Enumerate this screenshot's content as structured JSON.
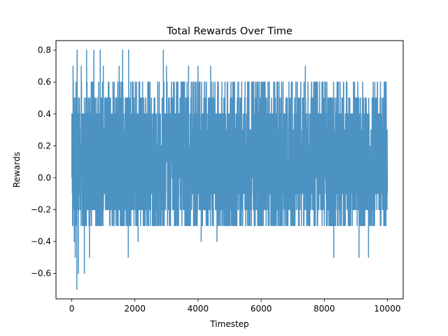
{
  "chart_data": {
    "type": "line",
    "title": "Total Rewards Over Time",
    "xlabel": "Timestep",
    "ylabel": "Rewards",
    "xlim": [
      -500,
      10500
    ],
    "ylim": [
      -0.76,
      0.86
    ],
    "xticks": [
      0,
      2000,
      4000,
      6000,
      8000,
      10000
    ],
    "xtick_labels": [
      "0",
      "2000",
      "4000",
      "6000",
      "8000",
      "10000"
    ],
    "yticks": [
      -0.6,
      -0.4,
      -0.2,
      0.0,
      0.2,
      0.4,
      0.6,
      0.8
    ],
    "ytick_labels": [
      "−0.6",
      "−0.4",
      "−0.2",
      "0.0",
      "0.2",
      "0.4",
      "0.6",
      "0.8"
    ],
    "grid": false,
    "legend": "none",
    "series": [
      {
        "color": "#1f77b4",
        "alpha": 0.8,
        "x_start": 0,
        "x_end": 10000,
        "levels": [
          -0.7,
          -0.6,
          -0.5,
          -0.4,
          -0.3,
          -0.2,
          -0.1,
          0.0,
          0.1,
          0.2,
          0.3,
          0.4,
          0.5,
          0.6,
          0.7,
          0.8
        ],
        "dense_band": [
          -0.2,
          0.4
        ],
        "extremes": [
          {
            "x": 40,
            "y": 0.7
          },
          {
            "x": 80,
            "y": -0.4
          },
          {
            "x": 110,
            "y": -0.5
          },
          {
            "x": 160,
            "y": -0.7
          },
          {
            "x": 170,
            "y": 0.8
          },
          {
            "x": 210,
            "y": -0.6
          },
          {
            "x": 300,
            "y": 0.7
          },
          {
            "x": 400,
            "y": -0.6
          },
          {
            "x": 470,
            "y": 0.8
          },
          {
            "x": 560,
            "y": -0.5
          },
          {
            "x": 700,
            "y": 0.8
          },
          {
            "x": 900,
            "y": 0.8
          },
          {
            "x": 1000,
            "y": 0.7
          },
          {
            "x": 1500,
            "y": 0.7
          },
          {
            "x": 1610,
            "y": 0.8
          },
          {
            "x": 1800,
            "y": 0.8
          },
          {
            "x": 1790,
            "y": -0.5
          },
          {
            "x": 2100,
            "y": -0.4
          },
          {
            "x": 2900,
            "y": 0.8
          },
          {
            "x": 3000,
            "y": 0.7
          },
          {
            "x": 3700,
            "y": 0.7
          },
          {
            "x": 4000,
            "y": 0.7
          },
          {
            "x": 4400,
            "y": 0.7
          },
          {
            "x": 4100,
            "y": -0.4
          },
          {
            "x": 4600,
            "y": -0.4
          },
          {
            "x": 5100,
            "y": 0.6
          },
          {
            "x": 6000,
            "y": 0.6
          },
          {
            "x": 7400,
            "y": 0.7
          },
          {
            "x": 8300,
            "y": -0.5
          },
          {
            "x": 9100,
            "y": -0.5
          },
          {
            "x": 9400,
            "y": -0.5
          },
          {
            "x": 9600,
            "y": 0.6
          },
          {
            "x": 9900,
            "y": 0.6
          }
        ]
      }
    ]
  }
}
